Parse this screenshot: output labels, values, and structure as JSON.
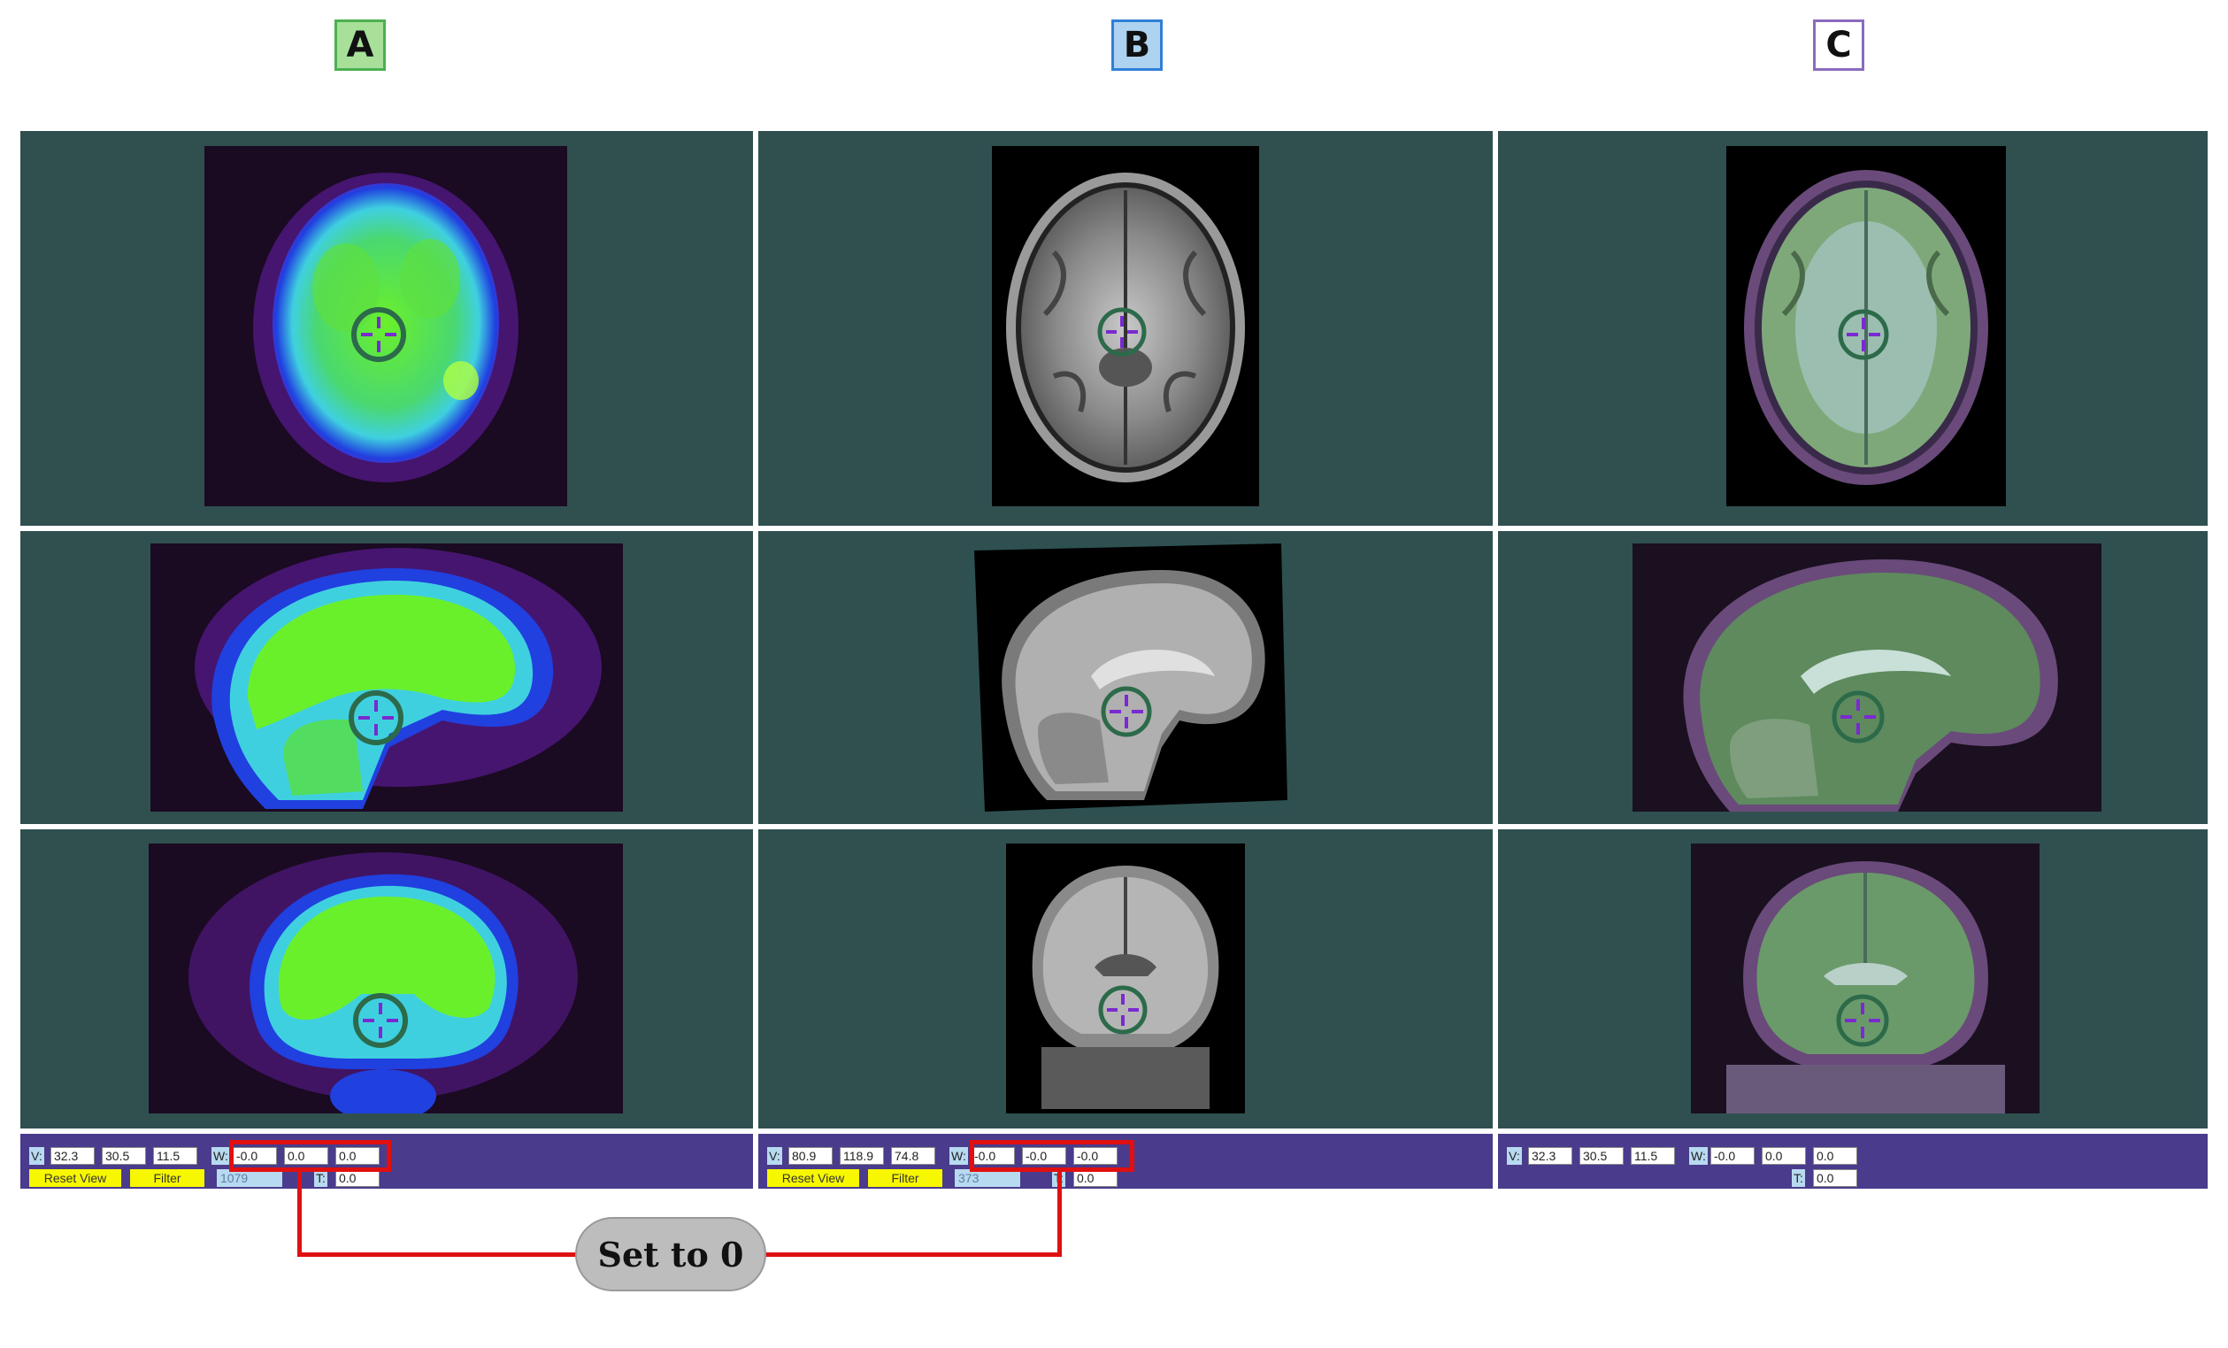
{
  "panel_labels": [
    "A",
    "B",
    "C"
  ],
  "panels": [
    {
      "id": "A",
      "toolbar": {
        "v_label": "V:",
        "v_values": [
          "32.3",
          "30.5",
          "11.5"
        ],
        "w_label": "W:",
        "w_values": [
          "-0.0",
          "0.0",
          "0.0"
        ],
        "reset_label": "Reset View",
        "filter_label": "Filter",
        "info_value": "1079",
        "t_label": "T:",
        "t_value": "0.0"
      }
    },
    {
      "id": "B",
      "toolbar": {
        "v_label": "V:",
        "v_values": [
          "80.9",
          "118.9",
          "74.8"
        ],
        "w_label": "W:",
        "w_values": [
          "-0.0",
          "-0.0",
          "-0.0"
        ],
        "reset_label": "Reset View",
        "filter_label": "Filter",
        "info_value": "373",
        "t_label": "T:",
        "t_value": "0.0"
      }
    },
    {
      "id": "C",
      "toolbar": {
        "v_label": "V:",
        "v_values": [
          "32.3",
          "30.5",
          "11.5"
        ],
        "w_label": "W:",
        "w_values": [
          "-0.0",
          "0.0",
          "0.0"
        ],
        "t_label": "T:",
        "t_value": "0.0"
      }
    }
  ],
  "annotation": {
    "callout_text": "Set to 0",
    "highlight_color": "#e01010"
  },
  "colors": {
    "viewer_background": "#305050",
    "toolbar_background": "#4a3b8c",
    "button_yellow": "#f7f700",
    "pet_colormap": [
      "#1a0a2a",
      "#7a1fb0",
      "#2040e0",
      "#3fd0e0",
      "#6af02a"
    ],
    "crosshair": "#7a2ad0"
  }
}
